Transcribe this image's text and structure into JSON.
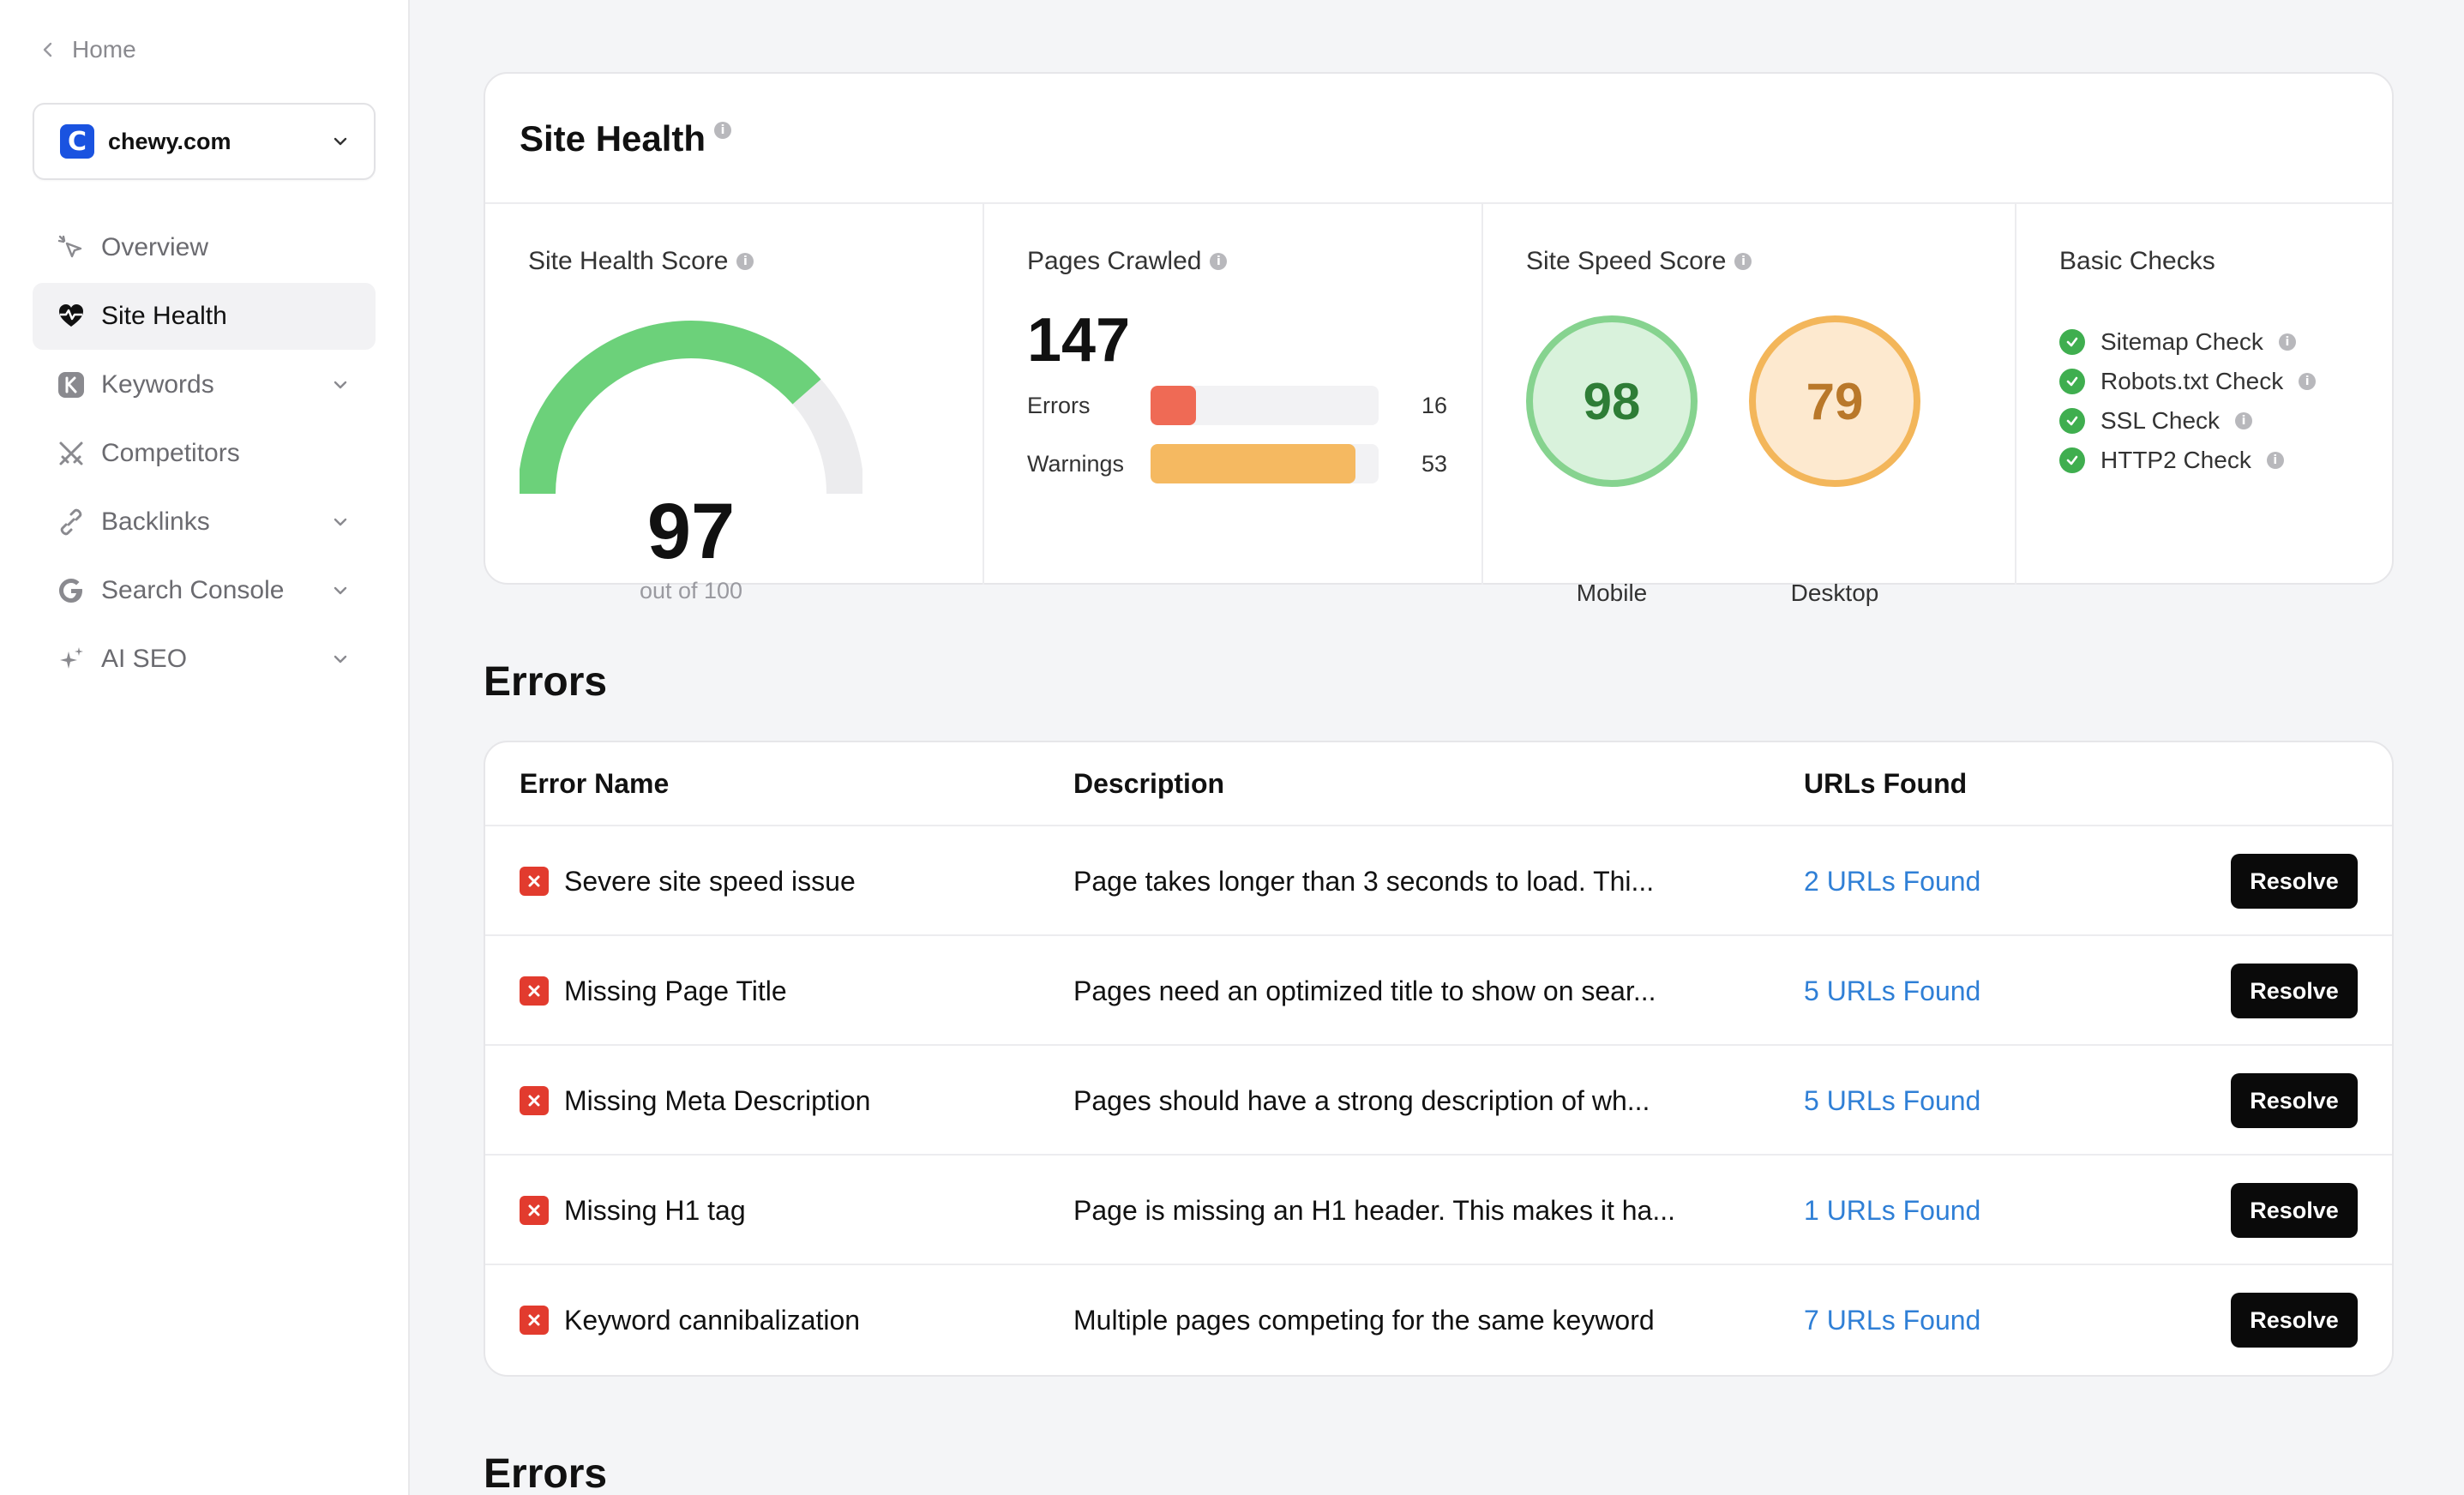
{
  "sidebar": {
    "home_label": "Home",
    "site_logo_letter": "C",
    "site_name": "chewy.com",
    "items": [
      {
        "label": "Overview",
        "icon": "cursor-click-icon",
        "active": false,
        "expandable": false
      },
      {
        "label": "Site Health",
        "icon": "heart-pulse-icon",
        "active": true,
        "expandable": false
      },
      {
        "label": "Keywords",
        "icon": "k-badge-icon",
        "active": false,
        "expandable": true
      },
      {
        "label": "Competitors",
        "icon": "swords-icon",
        "active": false,
        "expandable": false
      },
      {
        "label": "Backlinks",
        "icon": "link-icon",
        "active": false,
        "expandable": true
      },
      {
        "label": "Search Console",
        "icon": "google-icon",
        "active": false,
        "expandable": true
      },
      {
        "label": "AI SEO",
        "icon": "sparkles-icon",
        "active": false,
        "expandable": true
      }
    ]
  },
  "health": {
    "title": "Site Health",
    "score_title": "Site Health Score",
    "score": "97",
    "score_max_label": "out of 100",
    "score_fraction": 0.97,
    "pages_title": "Pages Crawled",
    "pages_count": "147",
    "errors_label": "Errors",
    "errors_count": "16",
    "warnings_label": "Warnings",
    "warnings_count": "53",
    "errors_fraction": 0.2,
    "warnings_fraction": 0.9,
    "speed_title": "Site Speed Score",
    "mobile_score": "98",
    "mobile_label": "Mobile",
    "desktop_score": "79",
    "desktop_label": "Desktop",
    "checks_title": "Basic Checks",
    "checks": [
      "Sitemap Check",
      "Robots.txt Check",
      "SSL Check",
      "HTTP2 Check"
    ]
  },
  "errors_section": {
    "title": "Errors",
    "headers": {
      "name": "Error Name",
      "description": "Description",
      "urls": "URLs Found"
    },
    "resolve_label": "Resolve",
    "rows": [
      {
        "name": "Severe site speed issue",
        "description": "Page takes longer than 3 seconds to load. Thi...",
        "urls": "2 URLs Found"
      },
      {
        "name": "Missing Page Title",
        "description": "Pages need an optimized title to show on sear...",
        "urls": "5 URLs Found"
      },
      {
        "name": "Missing Meta Description",
        "description": "Pages should have a strong description of wh...",
        "urls": "5 URLs Found"
      },
      {
        "name": "Missing H1 tag",
        "description": "Page is missing an H1 header. This makes it ha...",
        "urls": "1 URLs Found"
      },
      {
        "name": "Keyword cannibalization",
        "description": "Multiple pages competing for the same keyword",
        "urls": "7 URLs Found"
      }
    ]
  },
  "second_section_title": "Errors",
  "colors": {
    "gauge_green": "#6cd17a",
    "gauge_track": "#ececee",
    "error_bar": "#ef6a55",
    "warning_bar": "#f5b961",
    "mobile_fill": "#d9f2dc",
    "mobile_ring": "#86d38f",
    "mobile_text": "#2e7d36",
    "desktop_fill": "#fde9cf",
    "desktop_ring": "#f3b65a",
    "desktop_text": "#b9782a",
    "link_blue": "#2f7fd6",
    "error_red": "#e23b2e",
    "check_green": "#3fae4f"
  }
}
